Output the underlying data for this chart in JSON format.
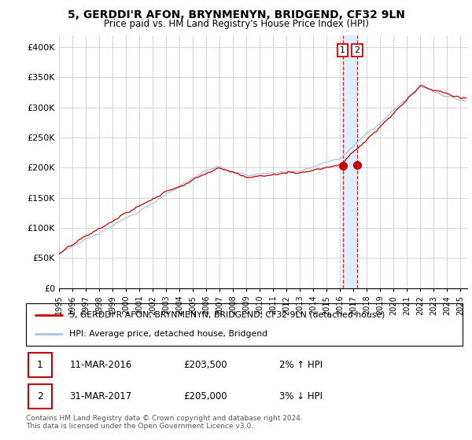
{
  "title": "5, GERDDI'R AFON, BRYNMENYN, BRIDGEND, CF32 9LN",
  "subtitle": "Price paid vs. HM Land Registry's House Price Index (HPI)",
  "ylabel_ticks": [
    "£0",
    "£50K",
    "£100K",
    "£150K",
    "£200K",
    "£250K",
    "£300K",
    "£350K",
    "£400K"
  ],
  "ytick_values": [
    0,
    50000,
    100000,
    150000,
    200000,
    250000,
    300000,
    350000,
    400000
  ],
  "ylim": [
    0,
    420000
  ],
  "xlim_start": 1995.0,
  "xlim_end": 2025.5,
  "hpi_color": "#a8c4e0",
  "price_color": "#cc0000",
  "annotation_box_color": "#cc0000",
  "dashed_line_color": "#cc0000",
  "shade_color": "#ddeeff",
  "transaction1_date": "11-MAR-2016",
  "transaction1_price": 203500,
  "transaction1_label": "2% ↑ HPI",
  "transaction1_x": 2016.19,
  "transaction2_date": "31-MAR-2017",
  "transaction2_price": 205000,
  "transaction2_label": "3% ↓ HPI",
  "transaction2_x": 2017.25,
  "legend_line1": "5, GERDDI'R AFON, BRYNMENYN, BRIDGEND, CF32 9LN (detached house)",
  "legend_line2": "HPI: Average price, detached house, Bridgend",
  "footer": "Contains HM Land Registry data © Crown copyright and database right 2024.\nThis data is licensed under the Open Government Licence v3.0.",
  "background_color": "#ffffff",
  "grid_color": "#cccccc"
}
